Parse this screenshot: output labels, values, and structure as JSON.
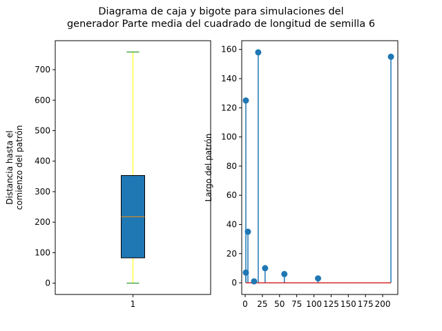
{
  "figure": {
    "title_line1": "Diagrama de caja y bigote para simulaciones del",
    "title_line2": "generador Parte media del cuadrado de longitud de semilla 6"
  },
  "chart_data": [
    {
      "type": "box",
      "title": "",
      "xlabel": "",
      "ylabel": "Distancia hasta el\ncomienzo del patrón",
      "categories": [
        "1"
      ],
      "box": {
        "whisker_low": 0,
        "q1": 83,
        "median": 218,
        "q3": 353,
        "whisker_high": 758
      },
      "ylim": [
        -37,
        795
      ],
      "yticks": [
        0,
        100,
        200,
        300,
        400,
        500,
        600,
        700
      ],
      "colors": {
        "box_fill": "#1f77b4",
        "whisker": "#ffff00",
        "caps": "#008000",
        "median": "#ff8c00",
        "edge": "#000000"
      },
      "grid": false
    },
    {
      "type": "stem",
      "title": "",
      "xlabel": "",
      "ylabel": "Largo del patrón",
      "x": [
        1,
        1,
        4,
        13,
        19,
        29,
        57,
        106,
        212
      ],
      "y": [
        125,
        7,
        35,
        1,
        158,
        10,
        6,
        3,
        155
      ],
      "baseline": 0,
      "xlim": [
        -5,
        222
      ],
      "ylim": [
        -8,
        166
      ],
      "xticks": [
        0,
        25,
        50,
        75,
        100,
        125,
        150,
        175,
        200
      ],
      "yticks": [
        0,
        20,
        40,
        60,
        80,
        100,
        120,
        140,
        160
      ],
      "colors": {
        "stem": "#1f77b4",
        "marker": "#1f77b4",
        "baseline": "#d62728"
      },
      "grid": false
    }
  ]
}
